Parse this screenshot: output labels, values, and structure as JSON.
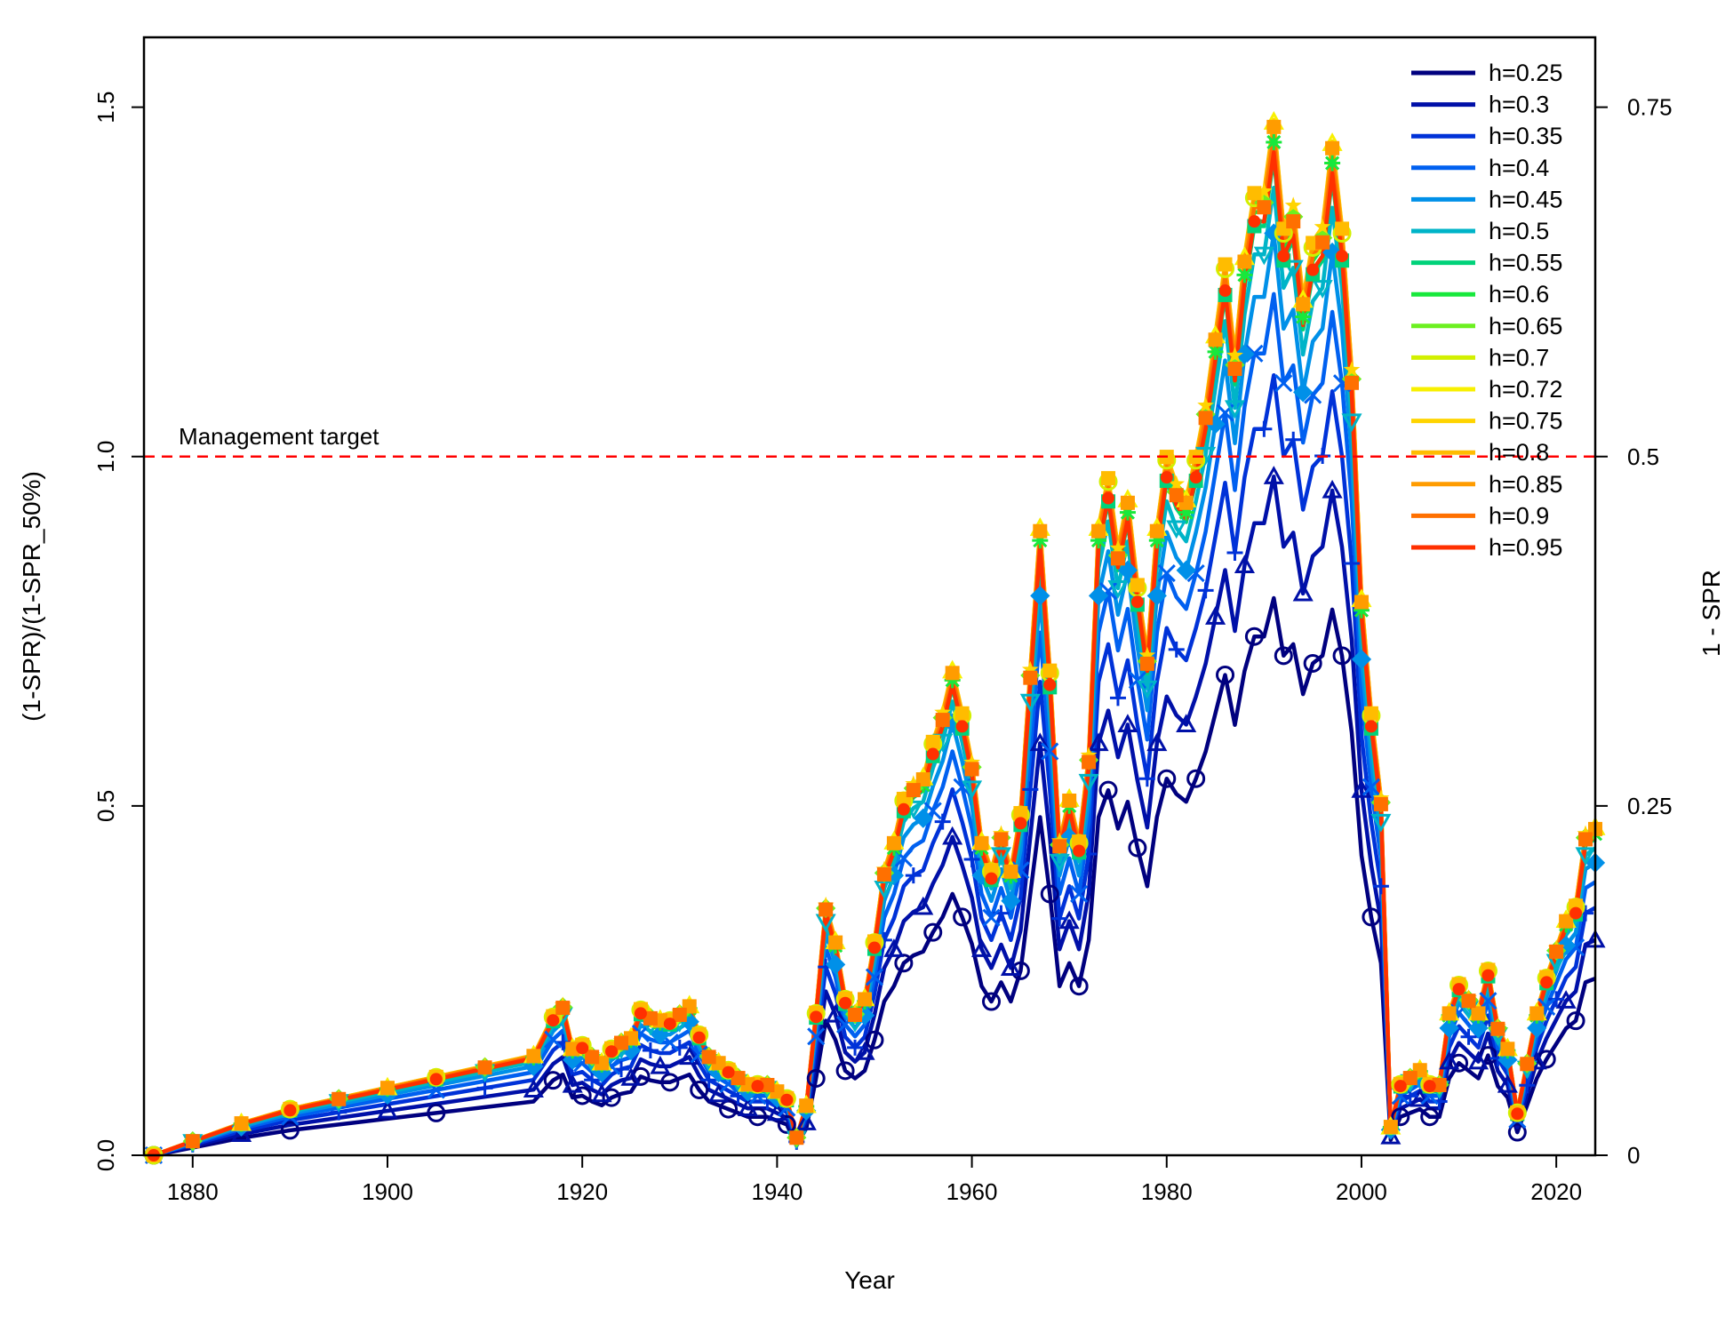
{
  "chart_data": {
    "type": "line",
    "title": "",
    "xlabel": "Year",
    "ylabel": "(1-SPR)/(1-SPR_50%)",
    "y2label": "1 - SPR",
    "xlim": [
      1875,
      2024
    ],
    "ylim": [
      0,
      1.6
    ],
    "x_ticks": [
      1880,
      1900,
      1920,
      1940,
      1960,
      1980,
      2000,
      2020
    ],
    "y_ticks": [
      0.0,
      0.5,
      1.0,
      1.5
    ],
    "y_tick_labels": [
      "0.0",
      "0.5",
      "1.0",
      "1.5"
    ],
    "y2_ticks": [
      0,
      0.25,
      0.5,
      0.75
    ],
    "y2_tick_labels": [
      "0",
      "0.25",
      "0.5",
      "0.75"
    ],
    "reference_line": {
      "y": 1.0,
      "label": "Management target",
      "color": "#ff0000",
      "style": "dashed"
    },
    "legend_position": "top-right",
    "grid": false,
    "years": [
      1876,
      1880,
      1885,
      1890,
      1895,
      1900,
      1905,
      1910,
      1915,
      1917,
      1918,
      1919,
      1920,
      1921,
      1922,
      1923,
      1924,
      1925,
      1926,
      1927,
      1928,
      1929,
      1930,
      1931,
      1932,
      1933,
      1934,
      1935,
      1936,
      1937,
      1938,
      1939,
      1940,
      1941,
      1942,
      1943,
      1944,
      1945,
      1946,
      1947,
      1948,
      1949,
      1950,
      1951,
      1952,
      1953,
      1954,
      1955,
      1956,
      1957,
      1958,
      1959,
      1960,
      1961,
      1962,
      1963,
      1964,
      1965,
      1966,
      1967,
      1968,
      1969,
      1970,
      1971,
      1972,
      1973,
      1974,
      1975,
      1976,
      1977,
      1978,
      1979,
      1980,
      1981,
      1982,
      1983,
      1984,
      1985,
      1986,
      1987,
      1988,
      1989,
      1990,
      1991,
      1992,
      1993,
      1994,
      1995,
      1996,
      1997,
      1998,
      1999,
      2000,
      2001,
      2002,
      2003,
      2004,
      2005,
      2006,
      2007,
      2008,
      2009,
      2010,
      2011,
      2012,
      2013,
      2014,
      2015,
      2016,
      2017,
      2018,
      2019,
      2020,
      2021,
      2022,
      2023,
      2024
    ],
    "reference_series": {
      "h": 0.6,
      "values": [
        0.0,
        0.02,
        0.045,
        0.065,
        0.08,
        0.095,
        0.11,
        0.125,
        0.14,
        0.195,
        0.21,
        0.15,
        0.155,
        0.14,
        0.13,
        0.15,
        0.16,
        0.165,
        0.205,
        0.195,
        0.19,
        0.19,
        0.2,
        0.21,
        0.17,
        0.14,
        0.13,
        0.12,
        0.11,
        0.1,
        0.1,
        0.1,
        0.09,
        0.08,
        0.025,
        0.07,
        0.2,
        0.35,
        0.3,
        0.22,
        0.2,
        0.22,
        0.3,
        0.4,
        0.44,
        0.5,
        0.52,
        0.53,
        0.58,
        0.62,
        0.68,
        0.62,
        0.55,
        0.44,
        0.4,
        0.45,
        0.4,
        0.48,
        0.68,
        0.88,
        0.68,
        0.44,
        0.5,
        0.44,
        0.56,
        0.88,
        0.95,
        0.85,
        0.92,
        0.8,
        0.7,
        0.88,
        0.98,
        0.94,
        0.92,
        0.98,
        1.05,
        1.15,
        1.25,
        1.12,
        1.26,
        1.35,
        1.35,
        1.45,
        1.3,
        1.33,
        1.2,
        1.28,
        1.3,
        1.42,
        1.3,
        1.1,
        0.78,
        0.62,
        0.5,
        0.04,
        0.1,
        0.11,
        0.12,
        0.1,
        0.1,
        0.2,
        0.24,
        0.22,
        0.2,
        0.26,
        0.18,
        0.15,
        0.06,
        0.13,
        0.2,
        0.25,
        0.29,
        0.33,
        0.35,
        0.45,
        0.46
      ]
    },
    "series": [
      {
        "name": "h=0.25",
        "color": "#00007f",
        "marker": "circle",
        "factor": 0.55
      },
      {
        "name": "h=0.3",
        "color": "#0010a8",
        "marker": "triangle",
        "factor": 0.67
      },
      {
        "name": "h=0.35",
        "color": "#0032d8",
        "marker": "plus",
        "factor": 0.77
      },
      {
        "name": "h=0.4",
        "color": "#0060f0",
        "marker": "cross",
        "factor": 0.85
      },
      {
        "name": "h=0.45",
        "color": "#0090e8",
        "marker": "diamond",
        "factor": 0.91
      },
      {
        "name": "h=0.5",
        "color": "#00b4c8",
        "marker": "triangle-down",
        "factor": 0.955
      },
      {
        "name": "h=0.55",
        "color": "#00d27a",
        "marker": "square",
        "factor": 0.985
      },
      {
        "name": "h=0.6",
        "color": "#18e83c",
        "marker": "asterisk",
        "factor": 1.0
      },
      {
        "name": "h=0.65",
        "color": "#6cf020",
        "marker": "diamond",
        "factor": 1.01
      },
      {
        "name": "h=0.7",
        "color": "#d2f000",
        "marker": "circle",
        "factor": 1.015
      },
      {
        "name": "h=0.72",
        "color": "#f8f000",
        "marker": "triangle",
        "factor": 1.02
      },
      {
        "name": "h=0.75",
        "color": "#ffd400",
        "marker": "star",
        "factor": 1.022
      },
      {
        "name": "h=0.8",
        "color": "#ffbc00",
        "marker": "square",
        "factor": 1.02
      },
      {
        "name": "h=0.85",
        "color": "#ff9c00",
        "marker": "square",
        "factor": 1.015
      },
      {
        "name": "h=0.9",
        "color": "#ff7000",
        "marker": "square",
        "factor": 1.005
      },
      {
        "name": "h=0.95",
        "color": "#ff3000",
        "marker": "circle-filled",
        "factor": 0.99
      }
    ]
  }
}
